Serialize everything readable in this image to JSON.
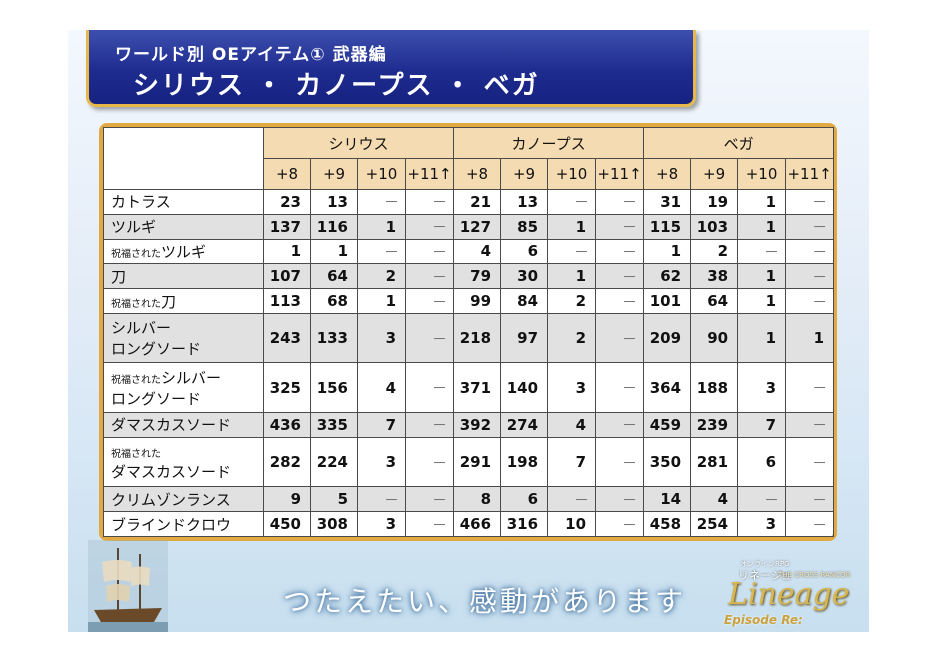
{
  "header": {
    "subtitle": "ワールド別  OEアイテム①  武器編",
    "title": "シリウス ・ カノープス ・ ベガ"
  },
  "table": {
    "worlds": [
      "シリウス",
      "カノープス",
      "ベガ"
    ],
    "levels": [
      "+8",
      "+9",
      "+10",
      "+11↑"
    ],
    "rows": [
      {
        "prefix": "",
        "name": "カトラス",
        "name2": "",
        "gray": false,
        "values": [
          "23",
          "13",
          "－",
          "－",
          "21",
          "13",
          "－",
          "－",
          "31",
          "19",
          "1",
          "－"
        ]
      },
      {
        "prefix": "",
        "name": "ツルギ",
        "name2": "",
        "gray": true,
        "values": [
          "137",
          "116",
          "1",
          "－",
          "127",
          "85",
          "1",
          "－",
          "115",
          "103",
          "1",
          "－"
        ]
      },
      {
        "prefix": "祝福された",
        "name": "ツルギ",
        "name2": "",
        "gray": false,
        "values": [
          "1",
          "1",
          "－",
          "－",
          "4",
          "6",
          "－",
          "－",
          "1",
          "2",
          "－",
          "－"
        ]
      },
      {
        "prefix": "",
        "name": "刀",
        "name2": "",
        "gray": true,
        "values": [
          "107",
          "64",
          "2",
          "－",
          "79",
          "30",
          "1",
          "－",
          "62",
          "38",
          "1",
          "－"
        ]
      },
      {
        "prefix": "祝福された",
        "name": "刀",
        "name2": "",
        "gray": false,
        "values": [
          "113",
          "68",
          "1",
          "－",
          "99",
          "84",
          "2",
          "－",
          "101",
          "64",
          "1",
          "－"
        ]
      },
      {
        "prefix": "",
        "name": "シルバー",
        "name2": "ロングソード",
        "gray": true,
        "values": [
          "243",
          "133",
          "3",
          "－",
          "218",
          "97",
          "2",
          "－",
          "209",
          "90",
          "1",
          "1"
        ]
      },
      {
        "prefix": "祝福された",
        "name": "シルバー",
        "name2": "ロングソード",
        "gray": false,
        "values": [
          "325",
          "156",
          "4",
          "－",
          "371",
          "140",
          "3",
          "－",
          "364",
          "188",
          "3",
          "－"
        ]
      },
      {
        "prefix": "",
        "name": "ダマスカスソード",
        "name2": "",
        "gray": true,
        "values": [
          "436",
          "335",
          "7",
          "－",
          "392",
          "274",
          "4",
          "－",
          "459",
          "239",
          "7",
          "－"
        ]
      },
      {
        "prefix": "祝福された",
        "name": "",
        "name2": "ダマスカスソード",
        "gray": false,
        "values": [
          "282",
          "224",
          "3",
          "－",
          "291",
          "198",
          "7",
          "－",
          "350",
          "281",
          "6",
          "－"
        ]
      },
      {
        "prefix": "",
        "name": "クリムゾンランス",
        "name2": "",
        "gray": true,
        "values": [
          "9",
          "5",
          "－",
          "－",
          "8",
          "6",
          "－",
          "－",
          "14",
          "4",
          "－",
          "－"
        ]
      },
      {
        "prefix": "",
        "name": "ブラインドクロウ",
        "name2": "",
        "gray": false,
        "values": [
          "450",
          "308",
          "3",
          "－",
          "466",
          "316",
          "10",
          "－",
          "458",
          "254",
          "3",
          "－"
        ]
      }
    ]
  },
  "footer": {
    "slogan": "つたえたい、感動があります",
    "logo_small": "オンラインRPG",
    "logo_jp": "リネージュ",
    "logo_cross": "THE CROSS RANCOR",
    "logo_brand": "Lineage",
    "logo_episode": "Episode Re:"
  },
  "colors": {
    "banner": "#1e2c8f",
    "banner_border": "#e6b84a",
    "frame": "#e2a842",
    "header_cell": "#f5dbb1",
    "gray_row": "#e1e1e1"
  }
}
